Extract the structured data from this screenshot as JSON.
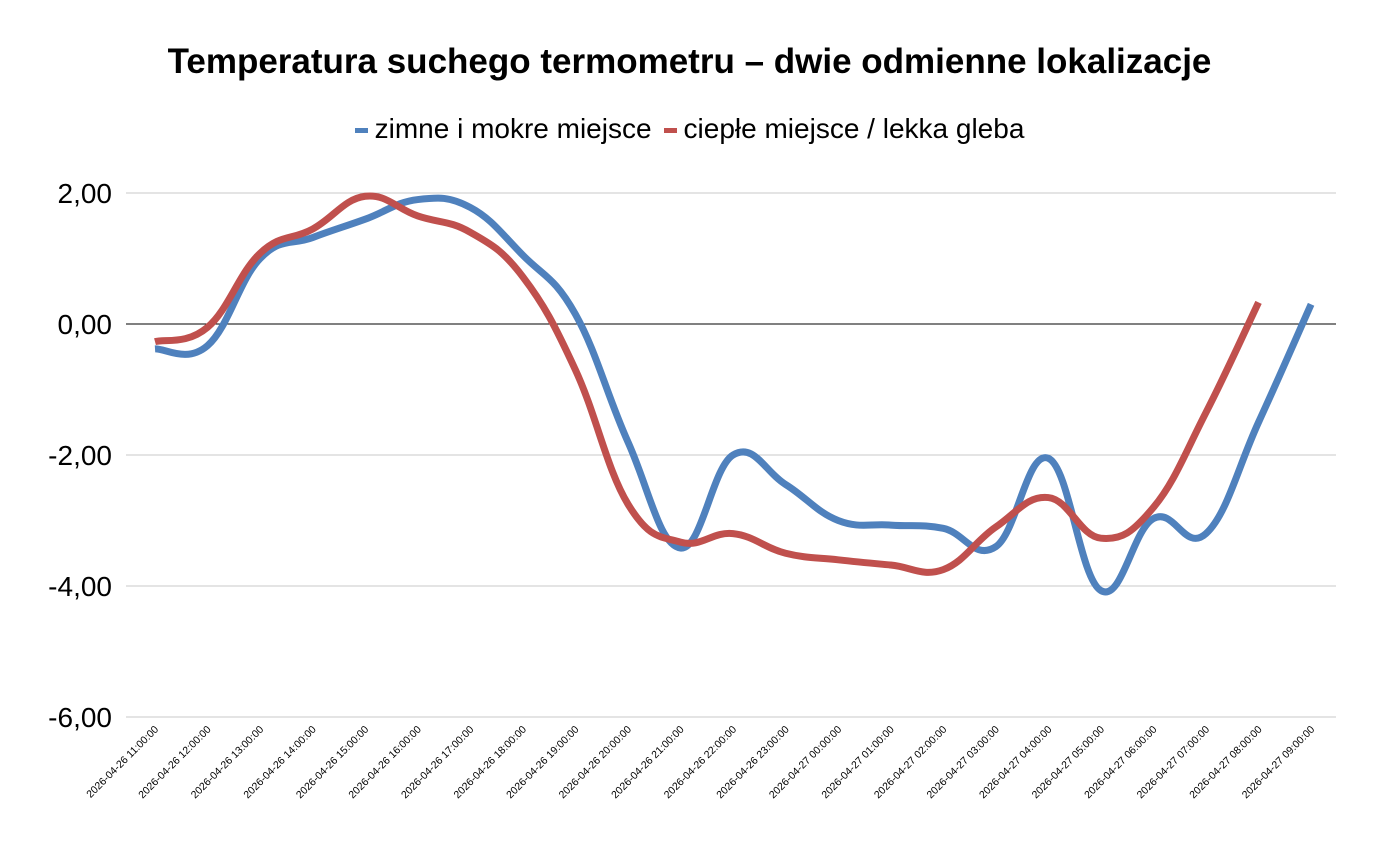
{
  "chart_data": {
    "type": "line",
    "title": "Temperatura suchego termometru – dwie odmienne lokalizacje",
    "xlabel": "",
    "ylabel": "",
    "ylim": [
      -6,
      2
    ],
    "y_ticks": [
      2,
      0,
      -2,
      -4,
      -6
    ],
    "y_tick_labels": [
      "2,00",
      "0,00",
      "-2,00",
      "-4,00",
      "-6,00"
    ],
    "grid": true,
    "legend_position": "top",
    "x": [
      "2026-04-26 11:00:00",
      "2026-04-26 12:00:00",
      "2026-04-26 13:00:00",
      "2026-04-26 14:00:00",
      "2026-04-26 15:00:00",
      "2026-04-26 16:00:00",
      "2026-04-26 17:00:00",
      "2026-04-26 18:00:00",
      "2026-04-26 19:00:00",
      "2026-04-26 20:00:00",
      "2026-04-26 21:00:00",
      "2026-04-26 22:00:00",
      "2026-04-26 23:00:00",
      "2026-04-27 00:00:00",
      "2026-04-27 01:00:00",
      "2026-04-27 02:00:00",
      "2026-04-27 03:00:00",
      "2026-04-27 04:00:00",
      "2026-04-27 05:00:00",
      "2026-04-27 06:00:00",
      "2026-04-27 07:00:00",
      "2026-04-27 08:00:00",
      "2026-04-27 09:00:00"
    ],
    "series": [
      {
        "name": "zimne i mokre miejsce",
        "color": "#4F81BD",
        "values": [
          -0.38,
          -0.33,
          1.0,
          1.32,
          1.6,
          1.9,
          1.78,
          1.05,
          0.15,
          -1.8,
          -3.42,
          -2.0,
          -2.45,
          -3.0,
          -3.07,
          -3.12,
          -3.4,
          -2.05,
          -4.07,
          -2.97,
          -3.2,
          -1.5,
          0.3
        ]
      },
      {
        "name": "ciepłe miejsce / lekka gleba",
        "color": "#C0504D",
        "values": [
          -0.27,
          -0.05,
          1.08,
          1.45,
          1.95,
          1.65,
          1.4,
          0.72,
          -0.7,
          -2.75,
          -3.33,
          -3.2,
          -3.5,
          -3.6,
          -3.68,
          -3.75,
          -3.1,
          -2.65,
          -3.27,
          -2.8,
          -1.35,
          0.33,
          null
        ]
      }
    ]
  }
}
